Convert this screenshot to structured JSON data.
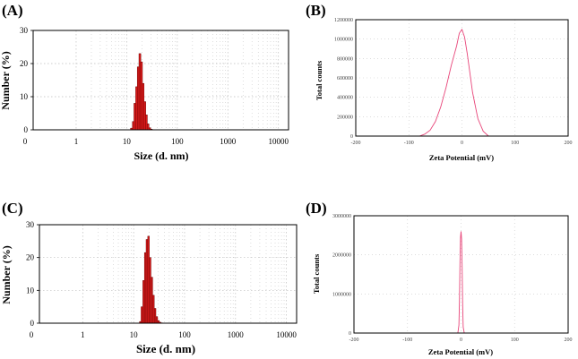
{
  "chart_data": [
    {
      "panel": "(A)",
      "type": "bar",
      "xlabel": "Size (d. nm)",
      "ylabel": "Number (%)",
      "xscale": "log",
      "x_ticks": [
        "0",
        "1",
        "10",
        "100",
        "1000",
        "10000"
      ],
      "y_ticks": [
        "0",
        "10",
        "20",
        "30"
      ],
      "ylim": [
        0,
        30
      ],
      "grid": true,
      "bar_color": "#dd1c1c",
      "series": [
        {
          "x": [
            12.4,
            13.5,
            14.5,
            15.7,
            16.9,
            18.2,
            19.6,
            21.1,
            22.8,
            24.5,
            26.4,
            28.5,
            30.7
          ],
          "values": [
            0.5,
            2.5,
            8,
            13,
            19,
            23,
            20.5,
            14,
            8.5,
            4.5,
            1.8,
            0.6,
            0.2
          ]
        }
      ]
    },
    {
      "panel": "(B)",
      "type": "line",
      "xlabel": "Zeta Potential (mV)",
      "ylabel": "Total counts",
      "x_ticks": [
        "-200",
        "-100",
        "0",
        "100",
        "200"
      ],
      "y_ticks": [
        "0",
        "200000",
        "400000",
        "600000",
        "800000",
        "1000000",
        "1200000"
      ],
      "xlim": [
        -200,
        200
      ],
      "ylim": [
        0,
        1200000
      ],
      "grid": true,
      "line_color": "#e8467a",
      "series": [
        {
          "x": [
            -80,
            -70,
            -60,
            -50,
            -40,
            -30,
            -20,
            -10,
            -5,
            0,
            5,
            10,
            20,
            30,
            40,
            50
          ],
          "values": [
            0,
            20000,
            60000,
            150000,
            300000,
            500000,
            730000,
            930000,
            1060000,
            1100000,
            1020000,
            850000,
            450000,
            180000,
            50000,
            0
          ]
        }
      ]
    },
    {
      "panel": "(C)",
      "type": "bar",
      "xlabel": "Size (d. nm)",
      "ylabel": "Number (%)",
      "xscale": "log",
      "x_ticks": [
        "0",
        "1",
        "10",
        "100",
        "1000",
        "10000"
      ],
      "y_ticks": [
        "0",
        "10",
        "20",
        "30"
      ],
      "ylim": [
        0,
        30
      ],
      "grid": true,
      "bar_color": "#dd1c1c",
      "series": [
        {
          "x": [
            13.5,
            14.5,
            15.7,
            16.9,
            18.2,
            19.6,
            21.1,
            22.8,
            24.5,
            26.4,
            28.5,
            30.7,
            33.1,
            35.6
          ],
          "values": [
            0.5,
            5,
            13,
            21.5,
            25.5,
            26.5,
            20,
            14,
            8.5,
            4.5,
            2,
            0.8,
            0.3,
            0.1
          ]
        }
      ]
    },
    {
      "panel": "(D)",
      "type": "line",
      "xlabel": "Zeta Potential (mV)",
      "ylabel": "Total counts",
      "x_ticks": [
        "-200",
        "-100",
        "0",
        "100",
        "200"
      ],
      "y_ticks": [
        "0",
        "1000000",
        "2000000",
        "3000000"
      ],
      "xlim": [
        -200,
        200
      ],
      "ylim": [
        0,
        3000000
      ],
      "grid": true,
      "line_color": "#e8467a",
      "series": [
        {
          "x": [
            -6,
            -4,
            -3,
            -2,
            -1,
            0,
            1,
            2,
            3,
            4,
            6
          ],
          "values": [
            0,
            200000,
            800000,
            1800000,
            2450000,
            2600000,
            2400000,
            1700000,
            700000,
            150000,
            0
          ]
        }
      ]
    }
  ]
}
